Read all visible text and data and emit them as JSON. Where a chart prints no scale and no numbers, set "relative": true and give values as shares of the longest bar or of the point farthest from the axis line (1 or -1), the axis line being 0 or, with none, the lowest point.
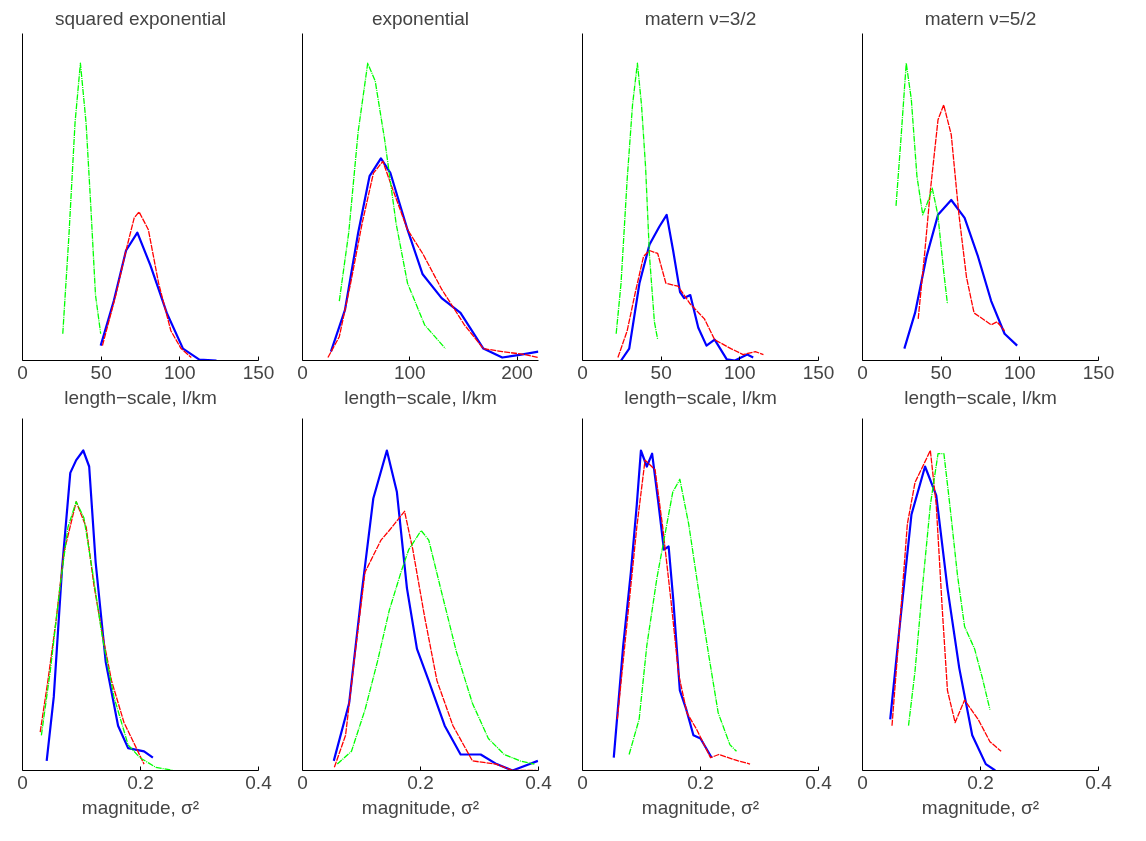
{
  "chart_data": [
    {
      "type": "line",
      "title": "squared exponential",
      "xlabel": "length−scale, l/km",
      "relative": true,
      "xlim": [
        0,
        150
      ],
      "xticks": [
        0,
        50,
        100,
        150
      ],
      "series": [
        {
          "color": "#00ff00",
          "line_style": "dashdot",
          "x": [
            25.6,
            29.5,
            33.4,
            36.8,
            40.4,
            43.3,
            46.4,
            49.7
          ],
          "values": [
            0.09,
            0.42,
            0.8,
            1.0,
            0.8,
            0.53,
            0.22,
            0.09
          ]
        },
        {
          "color": "#ff0000",
          "line_style": "dashed",
          "x": [
            50.8,
            59.3,
            65.8,
            71,
            74.1,
            80,
            86.5,
            94.3,
            100.8,
            107.3
          ],
          "values": [
            0.05,
            0.22,
            0.37,
            0.48,
            0.5,
            0.44,
            0.26,
            0.1,
            0.04,
            0.01
          ]
        },
        {
          "color": "#0000ff",
          "line_style": "solid",
          "x": [
            49.7,
            58,
            65.8,
            73,
            81.3,
            91.7,
            102,
            112.4,
            123.3
          ],
          "values": [
            0.05,
            0.2,
            0.37,
            0.43,
            0.32,
            0.16,
            0.04,
            0.003,
            0
          ]
        }
      ]
    },
    {
      "type": "line",
      "title": "exponential",
      "xlabel": "length−scale, l/km",
      "relative": true,
      "xlim": [
        0,
        220
      ],
      "xticks": [
        0,
        100,
        200
      ],
      "series": [
        {
          "color": "#00ff00",
          "line_style": "dashdot",
          "x": [
            34.3,
            43.1,
            51.9,
            60.8,
            67.8,
            76.7,
            87.3,
            97.9,
            113.8,
            133.2
          ],
          "values": [
            0.2,
            0.43,
            0.77,
            1.0,
            0.94,
            0.74,
            0.46,
            0.26,
            0.12,
            0.04
          ]
        },
        {
          "color": "#ff0000",
          "line_style": "dashed",
          "x": [
            23.7,
            34.3,
            44.9,
            55.5,
            66.1,
            74.9,
            83.7,
            97.9,
            112,
            129.7,
            150.9,
            168.6,
            186.2,
            207.4,
            219.8
          ],
          "values": [
            0.01,
            0.08,
            0.26,
            0.46,
            0.63,
            0.67,
            0.58,
            0.44,
            0.36,
            0.24,
            0.12,
            0.04,
            0.03,
            0.02,
            0.01
          ]
        },
        {
          "color": "#0000ff",
          "line_style": "solid",
          "x": [
            26.5,
            39.6,
            51.9,
            62.5,
            73.1,
            82,
            97.9,
            112,
            129.7,
            147.3,
            168.6,
            186.2,
            203.9,
            219.8
          ],
          "values": [
            0.03,
            0.17,
            0.43,
            0.62,
            0.68,
            0.63,
            0.44,
            0.29,
            0.21,
            0.16,
            0.04,
            0.01,
            0.02,
            0.03
          ]
        }
      ]
    },
    {
      "type": "line",
      "title": "matern ν=3/2",
      "xlabel": "length−scale, l/km",
      "relative": true,
      "xlim": [
        0,
        150
      ],
      "xticks": [
        0,
        50,
        100,
        150
      ],
      "series": [
        {
          "color": "#00ff00",
          "line_style": "dashdot",
          "x": [
            21.4,
            24.5,
            28.4,
            31.8,
            34.9,
            37.5,
            40.1,
            42.6,
            45.7,
            47.8
          ],
          "values": [
            0.09,
            0.26,
            0.61,
            0.86,
            1.0,
            0.86,
            0.65,
            0.35,
            0.13,
            0.07
          ]
        },
        {
          "color": "#ff0000",
          "line_style": "dashed",
          "x": [
            22.5,
            28.4,
            33.6,
            38.8,
            42.6,
            47.8,
            53,
            60.7,
            68.5,
            77.5,
            84,
            94.3,
            102.1,
            109.8,
            115
          ],
          "values": [
            0.01,
            0.1,
            0.23,
            0.35,
            0.37,
            0.36,
            0.26,
            0.25,
            0.19,
            0.14,
            0.07,
            0.04,
            0.02,
            0.03,
            0.02
          ]
        },
        {
          "color": "#0000ff",
          "line_style": "solid",
          "x": [
            24.5,
            29.7,
            36.2,
            42.6,
            48.8,
            53.5,
            57.6,
            62,
            64.6,
            68.5,
            73.6,
            78.8,
            84,
            91.7,
            96.9,
            104.7,
            108.5
          ],
          "values": [
            0,
            0.04,
            0.26,
            0.39,
            0.45,
            0.49,
            0.37,
            0.23,
            0.21,
            0.22,
            0.11,
            0.05,
            0.07,
            0.004,
            0,
            0.02,
            0.01
          ]
        }
      ]
    },
    {
      "type": "line",
      "title": "matern ν=5/2",
      "xlabel": "length−scale, l/km",
      "relative": true,
      "xlim": [
        0,
        150
      ],
      "xticks": [
        0,
        50,
        100,
        150
      ],
      "series": [
        {
          "color": "#00ff00",
          "line_style": "dashdot",
          "x": [
            21.3,
            24.5,
            27.8,
            31,
            34.6,
            38.3,
            41.9,
            44.3,
            47.9,
            51.6,
            54
          ],
          "values": [
            0.52,
            0.75,
            1.0,
            0.88,
            0.62,
            0.49,
            0.54,
            0.58,
            0.49,
            0.3,
            0.19
          ]
        },
        {
          "color": "#ff0000",
          "line_style": "dashed",
          "x": [
            35.4,
            39.5,
            43.1,
            48,
            51.6,
            56.4,
            61.3,
            66.1,
            70.9,
            81.8,
            85.5,
            90.3
          ],
          "values": [
            0.14,
            0.36,
            0.57,
            0.81,
            0.86,
            0.76,
            0.49,
            0.28,
            0.16,
            0.12,
            0.13,
            0.1
          ]
        },
        {
          "color": "#0000ff",
          "line_style": "solid",
          "x": [
            26.6,
            33.4,
            40.7,
            48,
            56.4,
            64.9,
            73.4,
            81.8,
            90.3,
            98.3
          ],
          "values": [
            0.04,
            0.16,
            0.35,
            0.49,
            0.54,
            0.48,
            0.35,
            0.2,
            0.09,
            0.05
          ]
        }
      ]
    },
    {
      "type": "line",
      "xlabel": "magnitude, σ²",
      "relative": true,
      "xlim": [
        0,
        0.4
      ],
      "xticks": [
        0,
        0.2,
        0.4
      ],
      "series": [
        {
          "color": "#00ff00",
          "line_style": "dashdot",
          "x": [
            0.032,
            0.047,
            0.064,
            0.077,
            0.091,
            0.104,
            0.118,
            0.135,
            0.155,
            0.179,
            0.199,
            0.226,
            0.256
          ],
          "values": [
            0.11,
            0.31,
            0.58,
            0.76,
            0.84,
            0.79,
            0.63,
            0.42,
            0.23,
            0.08,
            0.04,
            0.01,
            0
          ]
        },
        {
          "color": "#ff0000",
          "line_style": "dashed",
          "x": [
            0.03,
            0.043,
            0.057,
            0.07,
            0.091,
            0.108,
            0.121,
            0.135,
            0.151,
            0.172,
            0.206
          ],
          "values": [
            0.12,
            0.28,
            0.47,
            0.68,
            0.84,
            0.76,
            0.58,
            0.43,
            0.28,
            0.15,
            0.02
          ]
        },
        {
          "color": "#0000ff",
          "line_style": "solid",
          "x": [
            0.041,
            0.053,
            0.067,
            0.081,
            0.091,
            0.103,
            0.113,
            0.124,
            0.141,
            0.162,
            0.179,
            0.206,
            0.221
          ],
          "values": [
            0.03,
            0.23,
            0.63,
            0.93,
            0.97,
            1.0,
            0.95,
            0.65,
            0.34,
            0.14,
            0.07,
            0.06,
            0.04
          ]
        }
      ]
    },
    {
      "type": "line",
      "xlabel": "magnitude, σ²",
      "relative": true,
      "xlim": [
        0,
        0.4
      ],
      "xticks": [
        0,
        0.2,
        0.4
      ],
      "series": [
        {
          "color": "#00ff00",
          "line_style": "dashdot",
          "x": [
            0.059,
            0.083,
            0.106,
            0.127,
            0.147,
            0.167,
            0.18,
            0.201,
            0.214,
            0.234,
            0.261,
            0.288,
            0.315,
            0.342,
            0.369,
            0.393
          ],
          "values": [
            0.02,
            0.06,
            0.19,
            0.34,
            0.5,
            0.62,
            0.69,
            0.75,
            0.72,
            0.57,
            0.37,
            0.21,
            0.1,
            0.05,
            0.03,
            0.02
          ]
        },
        {
          "color": "#ff0000",
          "line_style": "dashed",
          "x": [
            0.054,
            0.073,
            0.09,
            0.106,
            0.133,
            0.147,
            0.16,
            0.173,
            0.187,
            0.207,
            0.228,
            0.255,
            0.288,
            0.328,
            0.356,
            0.396
          ],
          "values": [
            0.01,
            0.11,
            0.38,
            0.62,
            0.72,
            0.75,
            0.78,
            0.81,
            0.69,
            0.48,
            0.28,
            0.14,
            0.03,
            0.02,
            0,
            0
          ]
        },
        {
          "color": "#0000ff",
          "line_style": "solid",
          "x": [
            0.053,
            0.079,
            0.1,
            0.12,
            0.143,
            0.16,
            0.177,
            0.194,
            0.214,
            0.241,
            0.268,
            0.302,
            0.329,
            0.356,
            0.399
          ],
          "values": [
            0.03,
            0.21,
            0.55,
            0.85,
            1.0,
            0.87,
            0.57,
            0.38,
            0.28,
            0.14,
            0.05,
            0.05,
            0.02,
            0,
            0.03
          ]
        }
      ]
    },
    {
      "type": "line",
      "xlabel": "magnitude, σ²",
      "relative": true,
      "xlim": [
        0,
        0.4
      ],
      "xticks": [
        0,
        0.2,
        0.4
      ],
      "series": [
        {
          "color": "#00ff00",
          "line_style": "dashdot",
          "x": [
            0.079,
            0.096,
            0.109,
            0.126,
            0.143,
            0.153,
            0.165,
            0.18,
            0.197,
            0.214,
            0.23,
            0.25,
            0.261
          ],
          "values": [
            0.05,
            0.16,
            0.39,
            0.6,
            0.77,
            0.87,
            0.91,
            0.77,
            0.56,
            0.36,
            0.18,
            0.08,
            0.06
          ]
        },
        {
          "color": "#ff0000",
          "line_style": "dashed",
          "x": [
            0.059,
            0.076,
            0.092,
            0.106,
            0.123,
            0.136,
            0.15,
            0.163,
            0.177,
            0.193,
            0.217,
            0.231,
            0.264,
            0.284
          ],
          "values": [
            0.16,
            0.47,
            0.76,
            0.97,
            0.94,
            0.76,
            0.53,
            0.3,
            0.18,
            0.13,
            0.04,
            0.05,
            0.03,
            0.02
          ]
        },
        {
          "color": "#0000ff",
          "line_style": "solid",
          "x": [
            0.053,
            0.069,
            0.082,
            0.092,
            0.099,
            0.109,
            0.118,
            0.129,
            0.138,
            0.146,
            0.154,
            0.165,
            0.176,
            0.188,
            0.2,
            0.219
          ],
          "values": [
            0.04,
            0.39,
            0.62,
            0.83,
            1.0,
            0.95,
            0.99,
            0.83,
            0.69,
            0.7,
            0.53,
            0.25,
            0.19,
            0.11,
            0.1,
            0.04
          ]
        }
      ]
    },
    {
      "type": "line",
      "xlabel": "magnitude, σ²",
      "relative": true,
      "xlim": [
        0,
        0.4
      ],
      "xticks": [
        0,
        0.2,
        0.4
      ],
      "series": [
        {
          "color": "#00ff00",
          "line_style": "dashdot",
          "x": [
            0.078,
            0.089,
            0.102,
            0.115,
            0.128,
            0.138,
            0.148,
            0.161,
            0.173,
            0.19,
            0.203,
            0.216
          ],
          "values": [
            0.14,
            0.31,
            0.58,
            0.83,
            0.99,
            0.99,
            0.83,
            0.61,
            0.45,
            0.38,
            0.29,
            0.19
          ]
        },
        {
          "color": "#ff0000",
          "line_style": "dashed",
          "x": [
            0.05,
            0.063,
            0.076,
            0.089,
            0.115,
            0.125,
            0.135,
            0.144,
            0.157,
            0.173,
            0.196,
            0.216,
            0.235
          ],
          "values": [
            0.14,
            0.45,
            0.77,
            0.9,
            1.0,
            0.83,
            0.51,
            0.25,
            0.15,
            0.22,
            0.16,
            0.09,
            0.06
          ]
        },
        {
          "color": "#0000ff",
          "line_style": "solid",
          "x": [
            0.047,
            0.063,
            0.083,
            0.106,
            0.125,
            0.144,
            0.164,
            0.186,
            0.209,
            0.225
          ],
          "values": [
            0.16,
            0.45,
            0.8,
            0.95,
            0.86,
            0.57,
            0.32,
            0.11,
            0.02,
            0
          ]
        }
      ]
    }
  ]
}
